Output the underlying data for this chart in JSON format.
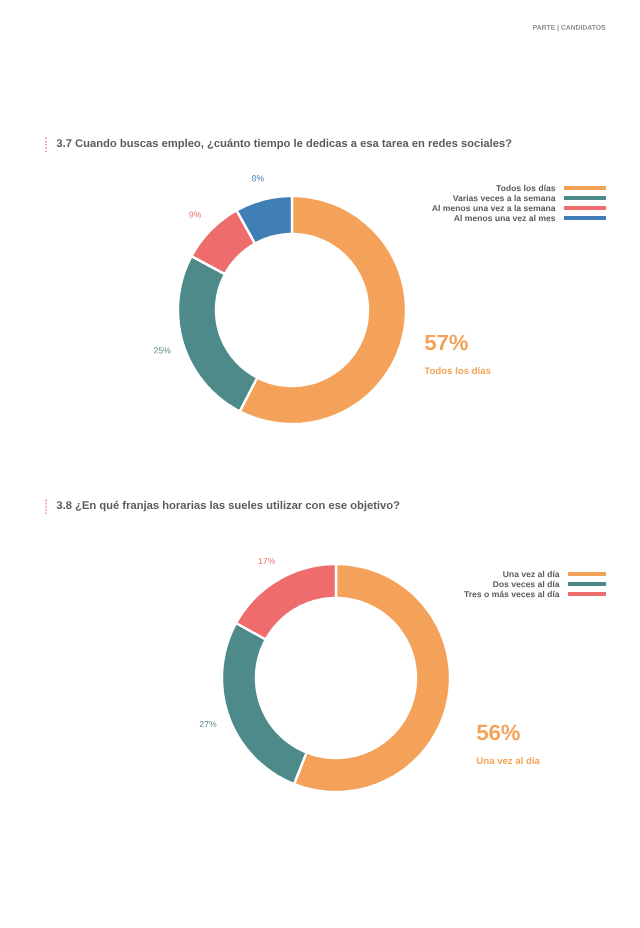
{
  "chart_data": [
    {
      "type": "donut",
      "title": "3.7 Cuando buscas empleo, ¿cuánto tiempo le dedicas a esa tarea en redes sociales?",
      "annotations": [
        "PARTE | CANDIDATOS"
      ],
      "categories": [
        "Todos los días",
        "Varias veces a la semana",
        "Al menos una vez a la semana",
        "Al menos una vez al mes"
      ],
      "values": [
        57,
        25,
        9,
        8
      ],
      "value_labels": [
        "57%",
        "25%",
        "9%",
        "8%"
      ],
      "colors": [
        "#f4a259",
        "#4f8a8b",
        "#ee6c6c",
        "#3f7fb5"
      ],
      "legend": "top right"
    },
    {
      "type": "donut",
      "title": "3.8 ¿En qué franjas horarias las sueles utilizar con ese objetivo?",
      "categories": [
        "Una vez al día",
        "Dos veces al día",
        "Tres o más veces al día"
      ],
      "values": [
        56,
        27,
        17
      ],
      "value_labels": [
        "56%",
        "27%",
        "17%"
      ],
      "colors": [
        "#f4a259",
        "#4f8a8b",
        "#ee6c6c"
      ],
      "legend": "top right"
    }
  ]
}
